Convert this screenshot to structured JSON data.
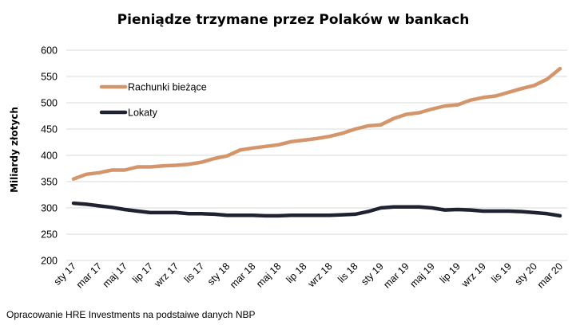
{
  "chart_data": {
    "type": "line",
    "title": "Pieniądze trzymane przez Polaków w bankach",
    "ylabel": "Miliardy złotych",
    "xlabel": "",
    "ylim": [
      200,
      600
    ],
    "yticks": [
      200,
      250,
      300,
      350,
      400,
      450,
      500,
      550,
      600
    ],
    "grid": true,
    "legend_position": "upper-left",
    "x": [
      "sty 17",
      "lut 17",
      "mar 17",
      "kwi 17",
      "maj 17",
      "cze 17",
      "lip 17",
      "sie 17",
      "wrz 17",
      "paź 17",
      "lis 17",
      "gru 17",
      "sty 18",
      "lut 18",
      "mar 18",
      "kwi 18",
      "maj 18",
      "cze 18",
      "lip 18",
      "sie 18",
      "wrz 18",
      "paź 18",
      "lis 18",
      "gru 18",
      "sty 19",
      "lut 19",
      "mar 19",
      "kwi 19",
      "maj 19",
      "cze 19",
      "lip 19",
      "sie 19",
      "wrz 19",
      "paź 19",
      "lis 19",
      "gru 19",
      "sty 20",
      "lut 20",
      "mar 20"
    ],
    "xtick_labels": [
      "sty 17",
      "mar 17",
      "maj 17",
      "lip 17",
      "wrz 17",
      "lis 17",
      "sty 18",
      "mar 18",
      "maj 18",
      "lip 18",
      "wrz 18",
      "lis 18",
      "sty 19",
      "mar 19",
      "maj 19",
      "lip 19",
      "wrz 19",
      "lis 19",
      "sty 20",
      "mar 20"
    ],
    "series": [
      {
        "name": "Rachunki bieżące",
        "color": "#d4956a",
        "values": [
          355,
          364,
          367,
          372,
          372,
          378,
          378,
          380,
          381,
          383,
          387,
          394,
          399,
          410,
          414,
          417,
          420,
          426,
          429,
          432,
          436,
          442,
          450,
          456,
          458,
          470,
          478,
          481,
          488,
          494,
          496,
          505,
          510,
          513,
          520,
          527,
          533,
          545,
          565
        ]
      },
      {
        "name": "Lokaty",
        "color": "#1f2230",
        "values": [
          309,
          307,
          304,
          301,
          297,
          294,
          291,
          291,
          291,
          289,
          289,
          288,
          286,
          286,
          286,
          285,
          285,
          286,
          286,
          286,
          286,
          287,
          288,
          293,
          300,
          302,
          302,
          302,
          300,
          296,
          297,
          296,
          294,
          294,
          294,
          293,
          291,
          289,
          285
        ]
      }
    ],
    "source_note": "Opracowanie HRE Investments na podstaiwe danych NBP"
  }
}
